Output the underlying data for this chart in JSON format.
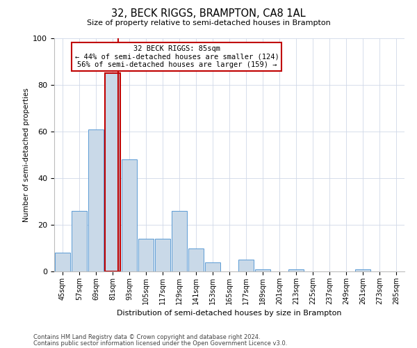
{
  "title1": "32, BECK RIGGS, BRAMPTON, CA8 1AL",
  "title2": "Size of property relative to semi-detached houses in Brampton",
  "xlabel": "Distribution of semi-detached houses by size in Brampton",
  "ylabel": "Number of semi-detached properties",
  "bins": [
    "45sqm",
    "57sqm",
    "69sqm",
    "81sqm",
    "93sqm",
    "105sqm",
    "117sqm",
    "129sqm",
    "141sqm",
    "153sqm",
    "165sqm",
    "177sqm",
    "189sqm",
    "201sqm",
    "213sqm",
    "225sqm",
    "237sqm",
    "249sqm",
    "261sqm",
    "273sqm",
    "285sqm"
  ],
  "values": [
    8,
    26,
    61,
    85,
    48,
    14,
    14,
    26,
    10,
    4,
    0,
    5,
    1,
    0,
    1,
    0,
    0,
    0,
    1,
    0,
    0
  ],
  "bar_color": "#c9d9e8",
  "bar_edge_color": "#5b9bd5",
  "highlight_bin_index": 3,
  "highlight_color": "#c00000",
  "annotation_text1": "32 BECK RIGGS: 85sqm",
  "annotation_text2": "← 44% of semi-detached houses are smaller (124)",
  "annotation_text3": "56% of semi-detached houses are larger (159) →",
  "annotation_box_color": "#ffffff",
  "annotation_box_edge": "#c00000",
  "ylim": [
    0,
    100
  ],
  "yticks": [
    0,
    20,
    40,
    60,
    80,
    100
  ],
  "footer1": "Contains HM Land Registry data © Crown copyright and database right 2024.",
  "footer2": "Contains public sector information licensed under the Open Government Licence v3.0.",
  "bg_color": "#ffffff",
  "grid_color": "#d0d8e8"
}
